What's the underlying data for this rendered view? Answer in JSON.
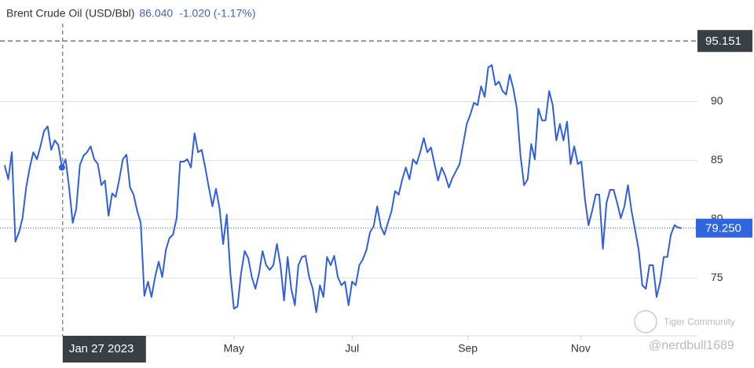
{
  "chart_data": {
    "type": "line",
    "title": "Brent Crude Oil (USD/Bbl)",
    "header_value": "86.040",
    "header_change": "-1.020 (-1.17%)",
    "series": [
      {
        "name": "Brent Crude Oil",
        "color": "#2f5fe0",
        "values": [
          84.6,
          83.4,
          85.7,
          78.1,
          78.9,
          80.1,
          82.7,
          84.4,
          85.7,
          85.1,
          86.2,
          87.5,
          87.9,
          85.9,
          86.7,
          86.3,
          84.4,
          85.1,
          82.7,
          79.7,
          80.9,
          84.6,
          85.4,
          85.7,
          86.2,
          85.1,
          84.7,
          82.9,
          83.3,
          80.3,
          82.2,
          81.9,
          83.4,
          85.1,
          85.5,
          82.7,
          82.1,
          80.7,
          79.7,
          73.5,
          74.7,
          73.4,
          75.1,
          76.4,
          75.1,
          77.4,
          78.4,
          78.7,
          80.1,
          84.9,
          84.9,
          85.1,
          84.4,
          87.3,
          85.7,
          85.9,
          84.4,
          82.7,
          81.1,
          82.6,
          80.9,
          77.9,
          80.4,
          75.4,
          72.4,
          72.6,
          75.4,
          77.3,
          76.7,
          75.1,
          74.1,
          75.4,
          77.3,
          76.1,
          75.7,
          76.1,
          77.9,
          76.1,
          73.1,
          76.8,
          74.1,
          72.7,
          76.1,
          76.8,
          76.9,
          75.1,
          74.1,
          72.1,
          74.4,
          73.4,
          76.8,
          76.1,
          76.9,
          75.1,
          74.4,
          74.7,
          72.7,
          74.7,
          74.4,
          76.1,
          76.6,
          77.4,
          78.9,
          79.4,
          81.1,
          79.4,
          78.7,
          79.7,
          80.7,
          82.4,
          82.1,
          83.4,
          84.4,
          83.4,
          85.1,
          84.7,
          85.7,
          86.9,
          85.7,
          86.1,
          84.7,
          83.3,
          84.4,
          83.7,
          82.7,
          83.5,
          84.1,
          84.7,
          86.4,
          88.1,
          88.9,
          89.9,
          89.7,
          91.3,
          90.4,
          92.9,
          93.1,
          91.4,
          91.7,
          90.9,
          90.6,
          92.3,
          91.1,
          89.4,
          85.4,
          82.9,
          83.4,
          86.4,
          85.1,
          89.4,
          88.4,
          88.4,
          90.9,
          89.7,
          86.7,
          88.1,
          86.7,
          88.3,
          84.7,
          86.2,
          84.7,
          84.9,
          81.7,
          79.5,
          80.7,
          82.1,
          82.1,
          77.5,
          81.4,
          82.5,
          82.5,
          81.4,
          80.1,
          81.1,
          82.9,
          80.7,
          79.1,
          77.4,
          74.4,
          74.1,
          76.1,
          76.1,
          73.4,
          74.7,
          76.8,
          76.8,
          78.7,
          79.5,
          79.3,
          79.25
        ]
      }
    ],
    "xlim": [
      -1.3,
      193.4
    ],
    "xticks": [
      {
        "value": 64,
        "label": "May"
      },
      {
        "value": 97,
        "label": "Jul"
      },
      {
        "value": 129.3,
        "label": "Sep"
      },
      {
        "value": 160.8,
        "label": "Nov"
      }
    ],
    "ylim": [
      70.1,
      96.3
    ],
    "yticks": [
      75,
      80,
      85,
      90
    ],
    "grid": true,
    "crosshair": {
      "x": {
        "value": 16.2,
        "label": "Jan 27 2023"
      },
      "y": 95.151,
      "point": 16
    },
    "last_value": {
      "value": 79.25,
      "label": "79.250"
    },
    "watermark": {
      "brand": "Tiger Community",
      "user": "@nerdbull1689"
    }
  }
}
